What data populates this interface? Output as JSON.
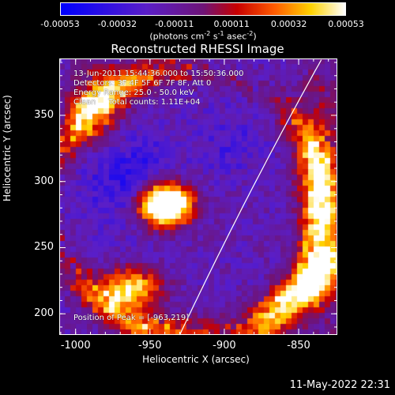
{
  "chart_data": {
    "type": "heatmap",
    "title": "Reconstructed RHESSI Image",
    "xlabel": "Heliocentric X (arcsec)",
    "ylabel": "Heliocentric Y (arcsec)",
    "xlim": [
      -1011,
      -824
    ],
    "ylim": [
      184,
      393
    ],
    "x_ticks": [
      "-1000",
      "-950",
      "-900",
      "-850"
    ],
    "x_tick_values": [
      -1000,
      -950,
      -900,
      -850
    ],
    "y_ticks": [
      "200",
      "250",
      "300",
      "350"
    ],
    "y_tick_values": [
      200,
      250,
      300,
      350
    ],
    "colorbar": {
      "ticks": [
        "-0.00053",
        "-0.00032",
        "-0.00011",
        "0.00011",
        "0.00032",
        "0.00053"
      ],
      "range": [
        -0.00053,
        0.00053
      ],
      "unit_parts": [
        "(photons cm",
        "-2",
        " s",
        "-1",
        " asec",
        "-2",
        ")"
      ]
    },
    "sources": [
      {
        "x": -963,
        "y": 219,
        "amplitude": 1.0
      },
      {
        "x": -940,
        "y": 282,
        "amplitude": 0.95
      }
    ],
    "peak_position": [
      -963,
      219
    ]
  },
  "annotations": {
    "time_range": "13-Jun-2011 15:44:36.000 to 15:50:36.000",
    "detectors": "Detectors: 3F 4F 5F 6F 7F 8F, Att 0",
    "energy_range": "Energy Range: 25.0 - 50.0 keV",
    "method_counts": "Clean     Total counts: 1.11E+04",
    "peak_text": "Position of Peak = [-963,219]"
  },
  "colors": {
    "background": "#000000",
    "text": "#ffffff",
    "limb_line": "#ffffff"
  },
  "footer": {
    "timestamp": "11-May-2022 22:31"
  }
}
